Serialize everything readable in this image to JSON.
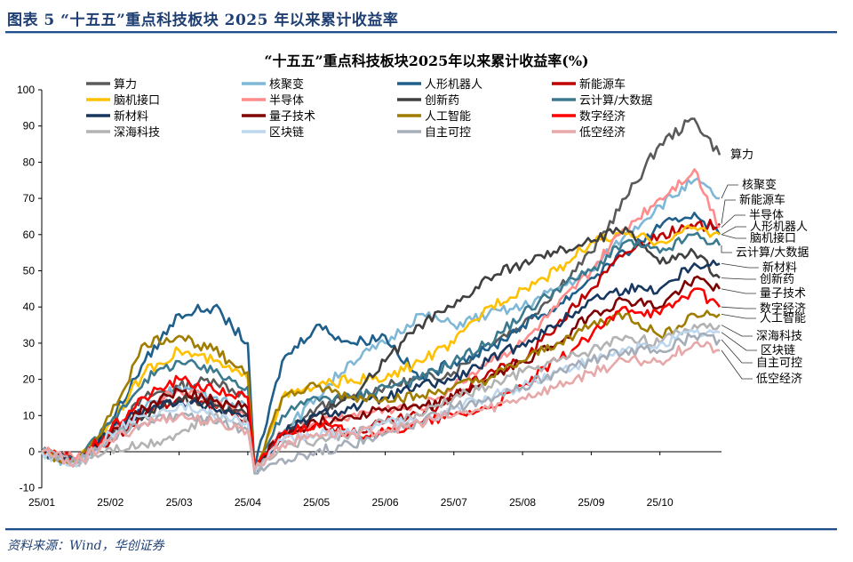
{
  "header": {
    "title": "图表 5  “十五五”重点科技板块 2025 年以来累计收益率"
  },
  "footer": {
    "source": "资料来源：Wind，华创证券"
  },
  "chart_data": {
    "type": "line",
    "title": "“十五五”重点科技板块2025年以来累计收益率(%)",
    "xlabel": "",
    "ylabel": "",
    "ylim": [
      -10,
      100
    ],
    "yticks": [
      -10,
      0,
      10,
      20,
      30,
      40,
      50,
      60,
      70,
      80,
      90,
      100
    ],
    "x_tick_labels": [
      "25/01",
      "25/02",
      "25/03",
      "25/04",
      "25/05",
      "25/06",
      "25/07",
      "25/08",
      "25/09",
      "25/10"
    ],
    "x_unit": "months since 2025-01 (approximate sample points)",
    "x": [
      0,
      0.5,
      1,
      1.5,
      2,
      2.5,
      3,
      3.1,
      3.5,
      4,
      4.5,
      5,
      5.5,
      6,
      6.5,
      7,
      7.5,
      8,
      8.5,
      9,
      9.5,
      9.87
    ],
    "legend_position": "top",
    "grid": false,
    "series": [
      {
        "name": "算力",
        "color": "#5a5a5a",
        "values": [
          0,
          -3,
          5,
          15,
          18,
          20,
          15,
          -5,
          5,
          12,
          15,
          18,
          20,
          22,
          30,
          35,
          45,
          55,
          70,
          85,
          92,
          82
        ]
      },
      {
        "name": "核聚变",
        "color": "#7fb8d6",
        "values": [
          0,
          -4,
          5,
          12,
          18,
          15,
          12,
          -6,
          5,
          15,
          25,
          30,
          38,
          35,
          38,
          40,
          45,
          50,
          60,
          68,
          75,
          70
        ]
      },
      {
        "name": "人形机器人",
        "color": "#1f5f8b",
        "values": [
          0,
          -3,
          8,
          25,
          38,
          40,
          30,
          -5,
          25,
          35,
          30,
          32,
          20,
          25,
          28,
          35,
          40,
          48,
          55,
          62,
          66,
          60
        ]
      },
      {
        "name": "新能源车",
        "color": "#c00000",
        "values": [
          0,
          -2,
          3,
          10,
          15,
          13,
          8,
          -4,
          3,
          8,
          5,
          8,
          10,
          15,
          22,
          25,
          35,
          45,
          55,
          60,
          62,
          63
        ]
      },
      {
        "name": "脑机接口",
        "color": "#ffc000",
        "values": [
          0,
          -3,
          8,
          22,
          28,
          25,
          20,
          -5,
          15,
          18,
          20,
          20,
          25,
          30,
          40,
          45,
          50,
          58,
          60,
          58,
          62,
          60
        ]
      },
      {
        "name": "半导体",
        "color": "#ff8b8b",
        "values": [
          0,
          -2,
          5,
          12,
          17,
          14,
          10,
          -5,
          5,
          8,
          10,
          12,
          12,
          18,
          25,
          30,
          40,
          50,
          62,
          70,
          78,
          62
        ]
      },
      {
        "name": "创新药",
        "color": "#404040",
        "values": [
          0,
          -3,
          5,
          10,
          15,
          13,
          10,
          -5,
          5,
          10,
          15,
          25,
          35,
          40,
          48,
          52,
          55,
          58,
          62,
          52,
          55,
          48
        ]
      },
      {
        "name": "云计算/大数据",
        "color": "#3b7a8e",
        "values": [
          0,
          -3,
          8,
          20,
          25,
          22,
          18,
          -5,
          10,
          15,
          15,
          18,
          20,
          25,
          30,
          38,
          45,
          50,
          58,
          55,
          60,
          57
        ]
      },
      {
        "name": "新材料",
        "color": "#17375e",
        "values": [
          0,
          -3,
          6,
          12,
          14,
          12,
          10,
          -5,
          5,
          10,
          12,
          15,
          18,
          20,
          25,
          30,
          35,
          42,
          45,
          45,
          52,
          52
        ]
      },
      {
        "name": "量子技术",
        "color": "#7f0000",
        "values": [
          0,
          -3,
          5,
          12,
          17,
          14,
          12,
          -5,
          5,
          8,
          10,
          12,
          12,
          15,
          20,
          25,
          30,
          38,
          42,
          40,
          48,
          45
        ]
      },
      {
        "name": "人工智能",
        "color": "#a07d00",
        "values": [
          0,
          -4,
          10,
          30,
          32,
          28,
          22,
          -5,
          15,
          18,
          15,
          15,
          15,
          18,
          20,
          25,
          30,
          35,
          38,
          32,
          38,
          38
        ]
      },
      {
        "name": "数字经济",
        "color": "#ff0000",
        "values": [
          0,
          -3,
          6,
          15,
          20,
          17,
          15,
          -5,
          5,
          8,
          5,
          5,
          8,
          10,
          12,
          18,
          25,
          32,
          40,
          38,
          45,
          40
        ]
      },
      {
        "name": "深海科技",
        "color": "#b3b3b3",
        "values": [
          0,
          -3,
          1,
          2,
          5,
          10,
          8,
          -5,
          2,
          3,
          5,
          8,
          10,
          15,
          18,
          22,
          25,
          28,
          32,
          30,
          35,
          35
        ]
      },
      {
        "name": "区块链",
        "color": "#bdd7ee",
        "values": [
          0,
          -4,
          5,
          10,
          13,
          10,
          8,
          -6,
          3,
          5,
          5,
          8,
          8,
          12,
          15,
          18,
          22,
          25,
          28,
          30,
          33,
          33
        ]
      },
      {
        "name": "自主可控",
        "color": "#a5adb8",
        "values": [
          0,
          -3,
          4,
          8,
          10,
          8,
          6,
          -6,
          -2,
          0,
          2,
          5,
          8,
          12,
          15,
          18,
          22,
          25,
          28,
          28,
          32,
          31
        ]
      },
      {
        "name": "低空经济",
        "color": "#e6a8a8",
        "values": [
          0,
          -3,
          3,
          8,
          10,
          8,
          6,
          -5,
          2,
          5,
          5,
          6,
          8,
          10,
          12,
          15,
          18,
          22,
          25,
          25,
          30,
          28
        ]
      }
    ],
    "end_labels": [
      "算力",
      "核聚变",
      "新能源车",
      "半导体",
      "人形机器人",
      "脑机接口",
      "云计算/大数据",
      "新材料",
      "创新药",
      "量子技术",
      "数字经济",
      "人工智能",
      "深海科技",
      "区块链",
      "自主可控",
      "低空经济"
    ]
  }
}
